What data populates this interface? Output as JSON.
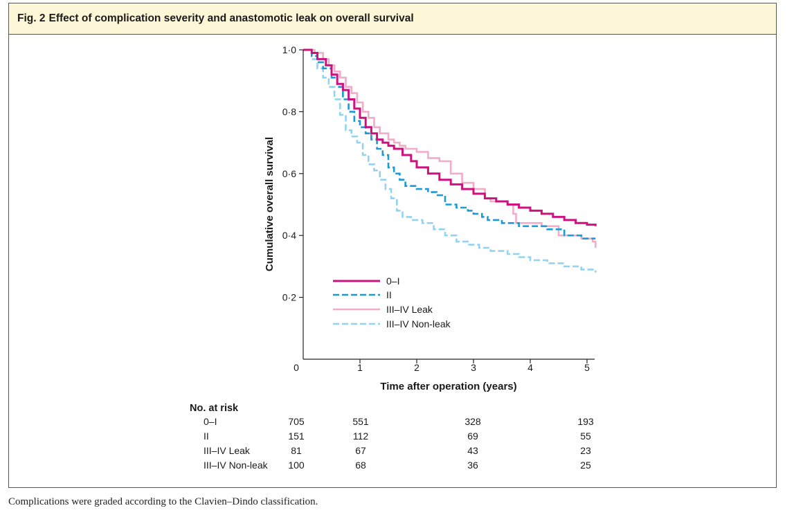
{
  "figure": {
    "number": "Fig. 2",
    "title": "Effect of complication severity and anastomotic leak on overall survival",
    "caption": "Complications were graded according to the Clavien–Dindo classification."
  },
  "colors": {
    "header_bg": "#fdf7d7",
    "series_0_I": "#cf117f",
    "series_II": "#1a9bd7",
    "series_III_IV_leak": "#f2acc9",
    "series_III_IV_nonleak": "#93d3ef"
  },
  "chart_data": {
    "type": "line",
    "subtype": "kaplan-meier step",
    "xlabel": "Time after operation (years)",
    "ylabel": "Cumulative overall survival",
    "xlim": [
      0,
      5.2
    ],
    "ylim": [
      0,
      1.0
    ],
    "xticks": [
      {
        "value": 0,
        "label": "0"
      },
      {
        "value": 1,
        "label": "1"
      },
      {
        "value": 2,
        "label": "2"
      },
      {
        "value": 3,
        "label": "3"
      },
      {
        "value": 4,
        "label": "4"
      },
      {
        "value": 5,
        "label": "5"
      }
    ],
    "yticks": [
      {
        "value": 0.2,
        "label": "0·2"
      },
      {
        "value": 0.4,
        "label": "0·4"
      },
      {
        "value": 0.6,
        "label": "0·6"
      },
      {
        "value": 0.8,
        "label": "0·8"
      },
      {
        "value": 1.0,
        "label": "1·0"
      }
    ],
    "legend_position": "lower-left inside plot",
    "series": [
      {
        "name": "0–I",
        "color": "#cf117f",
        "dash": "solid",
        "x": [
          0,
          0.15,
          0.25,
          0.4,
          0.5,
          0.6,
          0.7,
          0.8,
          0.9,
          1.0,
          1.1,
          1.2,
          1.3,
          1.4,
          1.5,
          1.6,
          1.75,
          1.9,
          2.0,
          2.2,
          2.4,
          2.6,
          2.8,
          3.0,
          3.2,
          3.4,
          3.6,
          3.8,
          4.0,
          4.2,
          4.4,
          4.6,
          4.8,
          5.0,
          5.15
        ],
        "y": [
          1.0,
          0.99,
          0.97,
          0.95,
          0.92,
          0.89,
          0.87,
          0.84,
          0.81,
          0.78,
          0.75,
          0.73,
          0.71,
          0.7,
          0.69,
          0.68,
          0.66,
          0.64,
          0.62,
          0.6,
          0.58,
          0.565,
          0.55,
          0.535,
          0.52,
          0.51,
          0.5,
          0.49,
          0.48,
          0.47,
          0.46,
          0.45,
          0.44,
          0.435,
          0.43
        ]
      },
      {
        "name": "II",
        "color": "#1a9bd7",
        "dash": "dashed",
        "x": [
          0,
          0.15,
          0.25,
          0.35,
          0.5,
          0.6,
          0.7,
          0.8,
          0.9,
          1.0,
          1.1,
          1.2,
          1.3,
          1.4,
          1.5,
          1.6,
          1.7,
          1.8,
          2.0,
          2.2,
          2.35,
          2.5,
          2.7,
          2.9,
          3.0,
          3.15,
          3.25,
          3.5,
          3.8,
          4.0,
          4.3,
          4.6,
          4.9,
          5.15
        ],
        "y": [
          1.0,
          0.98,
          0.96,
          0.94,
          0.91,
          0.88,
          0.84,
          0.8,
          0.77,
          0.75,
          0.73,
          0.71,
          0.68,
          0.66,
          0.62,
          0.6,
          0.58,
          0.56,
          0.55,
          0.54,
          0.53,
          0.5,
          0.49,
          0.48,
          0.47,
          0.46,
          0.45,
          0.44,
          0.43,
          0.43,
          0.42,
          0.4,
          0.39,
          0.39
        ]
      },
      {
        "name": "III–IV Leak",
        "color": "#f2acc9",
        "dash": "solid",
        "x": [
          0,
          0.2,
          0.35,
          0.45,
          0.55,
          0.65,
          0.75,
          0.85,
          0.95,
          1.05,
          1.15,
          1.25,
          1.35,
          1.5,
          1.6,
          1.7,
          1.8,
          2.0,
          2.2,
          2.4,
          2.6,
          2.8,
          3.0,
          3.2,
          3.3,
          3.6,
          3.7,
          3.75,
          4.2,
          4.5,
          4.9,
          5.1,
          5.15
        ],
        "y": [
          1.0,
          0.99,
          0.97,
          0.95,
          0.93,
          0.91,
          0.88,
          0.86,
          0.83,
          0.8,
          0.78,
          0.75,
          0.73,
          0.71,
          0.7,
          0.69,
          0.68,
          0.67,
          0.65,
          0.64,
          0.6,
          0.57,
          0.55,
          0.52,
          0.51,
          0.5,
          0.47,
          0.44,
          0.43,
          0.4,
          0.39,
          0.38,
          0.36
        ]
      },
      {
        "name": "III–IV Non-leak",
        "color": "#93d3ef",
        "dash": "dashed",
        "x": [
          0,
          0.15,
          0.25,
          0.35,
          0.45,
          0.55,
          0.65,
          0.75,
          0.85,
          0.95,
          1.05,
          1.15,
          1.25,
          1.35,
          1.45,
          1.55,
          1.65,
          1.75,
          1.9,
          2.1,
          2.3,
          2.5,
          2.7,
          2.9,
          3.1,
          3.3,
          3.6,
          3.8,
          4.0,
          4.3,
          4.6,
          4.9,
          5.15
        ],
        "y": [
          1.0,
          0.97,
          0.94,
          0.91,
          0.88,
          0.84,
          0.79,
          0.74,
          0.72,
          0.7,
          0.66,
          0.63,
          0.61,
          0.58,
          0.55,
          0.52,
          0.48,
          0.46,
          0.45,
          0.44,
          0.42,
          0.4,
          0.38,
          0.37,
          0.36,
          0.35,
          0.34,
          0.33,
          0.32,
          0.31,
          0.3,
          0.29,
          0.28
        ]
      }
    ],
    "risk_table": {
      "title": "No. at risk",
      "times": [
        0,
        1,
        3,
        5
      ],
      "rows": [
        {
          "label": "0–I",
          "counts": [
            "705",
            "551",
            "328",
            "193"
          ]
        },
        {
          "label": "II",
          "counts": [
            "151",
            "112",
            "69",
            "55"
          ]
        },
        {
          "label": "III–IV Leak",
          "counts": [
            "81",
            "67",
            "43",
            "23"
          ]
        },
        {
          "label": "III–IV Non-leak",
          "counts": [
            "100",
            "68",
            "36",
            "25"
          ]
        }
      ]
    }
  }
}
